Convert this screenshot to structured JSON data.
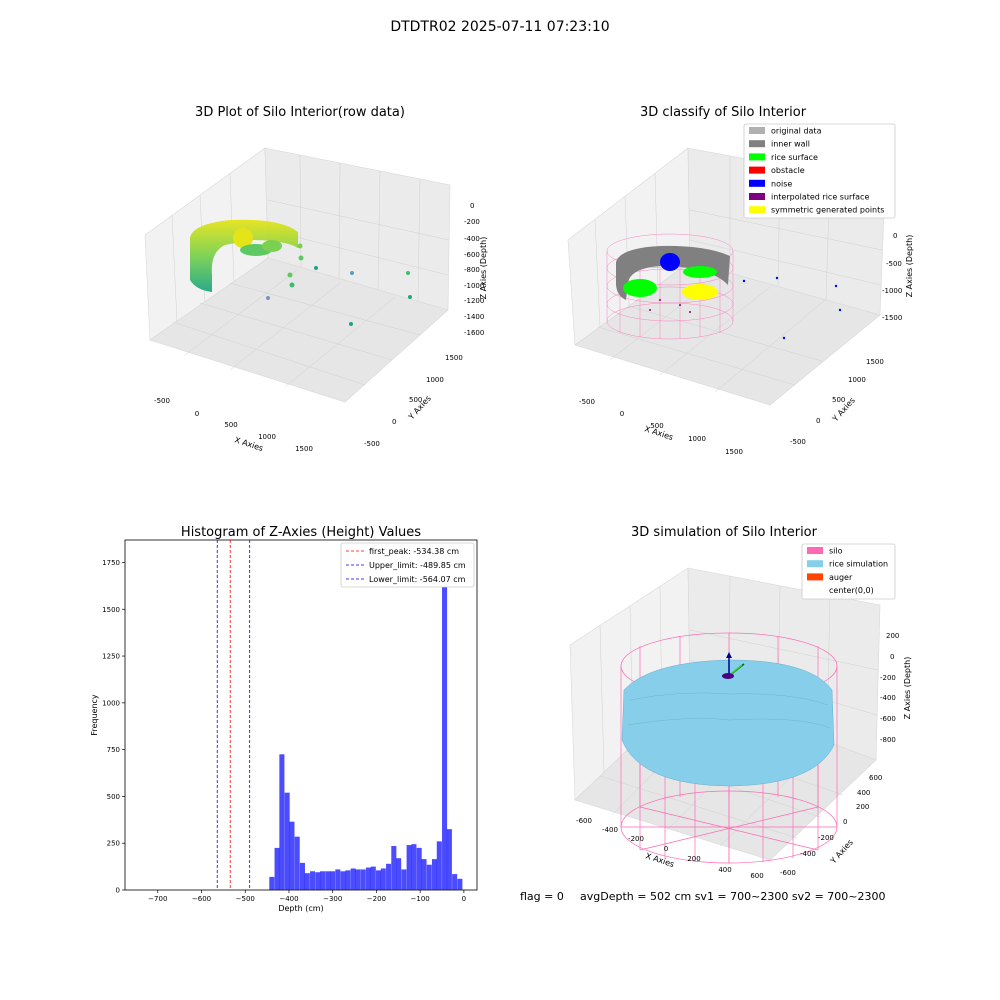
{
  "suptitle": "DTDTR02 2025-07-11 07:23:10",
  "footer": {
    "flag": "flag = 0",
    "avg": "avgDepth = 502 cm  sv1 = 700~2300  sv2 = 700~2300"
  },
  "chart_data": [
    {
      "type": "scatter",
      "projection": "3d",
      "title": "3D Plot of Silo Interior(row data)",
      "xlabel": "X Axies",
      "ylabel": "Y Axies",
      "zlabel": "Z Axies (Depth)",
      "xticks": [
        "-500",
        "0",
        "500",
        "1000",
        "1500"
      ],
      "yticks": [
        "-500",
        "0",
        "500",
        "1000",
        "1500"
      ],
      "zticks": [
        "0",
        "-200",
        "-400",
        "-600",
        "-800",
        "-1000",
        "-1200",
        "-1400",
        "-1600"
      ],
      "colormap": "viridis",
      "grid": true
    },
    {
      "type": "scatter",
      "projection": "3d",
      "title": "3D classify of Silo Interior",
      "xlabel": "X Axies",
      "ylabel": "Y Axies",
      "zlabel": "Z Axies (Depth)",
      "xticks": [
        "-500",
        "0",
        "500",
        "1000",
        "1500"
      ],
      "yticks": [
        "-500",
        "0",
        "500",
        "1000",
        "1500"
      ],
      "zticks": [
        "0",
        "-500",
        "-1000",
        "-1500"
      ],
      "legend_position": "top-right",
      "legend": [
        {
          "label": "original data",
          "color": "#b0b0b0"
        },
        {
          "label": "inner wall",
          "color": "#808080"
        },
        {
          "label": "rice surface",
          "color": "#00ff00"
        },
        {
          "label": "obstacle",
          "color": "#ff0000"
        },
        {
          "label": "noise",
          "color": "#0000ff"
        },
        {
          "label": "interpolated rice surface",
          "color": "#800080"
        },
        {
          "label": "symmetric generated points",
          "color": "#ffff00"
        }
      ],
      "grid": true
    },
    {
      "type": "bar",
      "title": "Histogram of Z-Axies (Height) Values",
      "xlabel": "Depth (cm)",
      "ylabel": "Frequency",
      "xlim": [
        -775,
        30
      ],
      "ylim": [
        0,
        1870
      ],
      "xticks": [
        -700,
        -600,
        -500,
        -400,
        -300,
        -200,
        -100,
        0
      ],
      "yticks": [
        0,
        250,
        500,
        750,
        1000,
        1250,
        1500,
        1750
      ],
      "bar_color": "#0000ff",
      "bin_width": 11.6,
      "bins": [
        {
          "x": -570,
          "count": 70
        },
        {
          "x": -558,
          "count": 225
        },
        {
          "x": -547,
          "count": 725
        },
        {
          "x": -535,
          "count": 520
        },
        {
          "x": -524,
          "count": 365
        },
        {
          "x": -512,
          "count": 285
        },
        {
          "x": -500,
          "count": 145
        },
        {
          "x": -489,
          "count": 90
        },
        {
          "x": -477,
          "count": 100
        },
        {
          "x": -465,
          "count": 95
        },
        {
          "x": -454,
          "count": 100
        },
        {
          "x": -442,
          "count": 100
        },
        {
          "x": -431,
          "count": 100
        },
        {
          "x": -419,
          "count": 110
        },
        {
          "x": -407,
          "count": 100
        },
        {
          "x": -396,
          "count": 105
        },
        {
          "x": -384,
          "count": 115
        },
        {
          "x": -373,
          "count": 110
        },
        {
          "x": -361,
          "count": 110
        },
        {
          "x": -349,
          "count": 120
        },
        {
          "x": -338,
          "count": 125
        },
        {
          "x": -326,
          "count": 105
        },
        {
          "x": -315,
          "count": 115
        },
        {
          "x": -303,
          "count": 140
        },
        {
          "x": -291,
          "count": 235
        },
        {
          "x": -280,
          "count": 170
        },
        {
          "x": -268,
          "count": 110
        },
        {
          "x": -256,
          "count": 240
        },
        {
          "x": -245,
          "count": 245
        },
        {
          "x": -233,
          "count": 225
        },
        {
          "x": -222,
          "count": 165
        },
        {
          "x": -210,
          "count": 135
        },
        {
          "x": -198,
          "count": 165
        },
        {
          "x": -187,
          "count": 260
        },
        {
          "x": -175,
          "count": 1765
        },
        {
          "x": -164,
          "count": 325
        },
        {
          "x": -152,
          "count": 85
        },
        {
          "x": -140,
          "count": 60
        }
      ],
      "bins_note_offset": 125,
      "vlines": [
        {
          "label": "first_peak: -534.38 cm",
          "x": -534.38,
          "color": "#ff0000"
        },
        {
          "label": "Upper_limit: -489.85 cm",
          "x": -489.85,
          "color": "#0000ff"
        },
        {
          "label": "Lower_limit: -564.07 cm",
          "x": -564.07,
          "color": "#0000ff"
        }
      ],
      "legend_position": "top-right",
      "grid": false
    },
    {
      "type": "scatter",
      "projection": "3d",
      "title": "3D simulation of Silo Interior",
      "xlabel": "X Axies",
      "ylabel": "Y Axies",
      "zlabel": "Z Axies (Depth)",
      "xticks": [
        "-600",
        "-400",
        "-200",
        "0",
        "200",
        "400",
        "600"
      ],
      "yticks": [
        "-600",
        "-400",
        "-200",
        "0",
        "200",
        "400",
        "600"
      ],
      "zticks": [
        "200",
        "0",
        "-200",
        "-400",
        "-600",
        "-800"
      ],
      "legend_position": "top-right",
      "legend": [
        {
          "label": "silo",
          "color": "#ff69b4"
        },
        {
          "label": "rice simulation",
          "color": "#87ceeb"
        },
        {
          "label": "auger",
          "color": "#ff4500"
        },
        {
          "label": "center(0,0)",
          "color": ""
        }
      ],
      "grid": true
    }
  ]
}
